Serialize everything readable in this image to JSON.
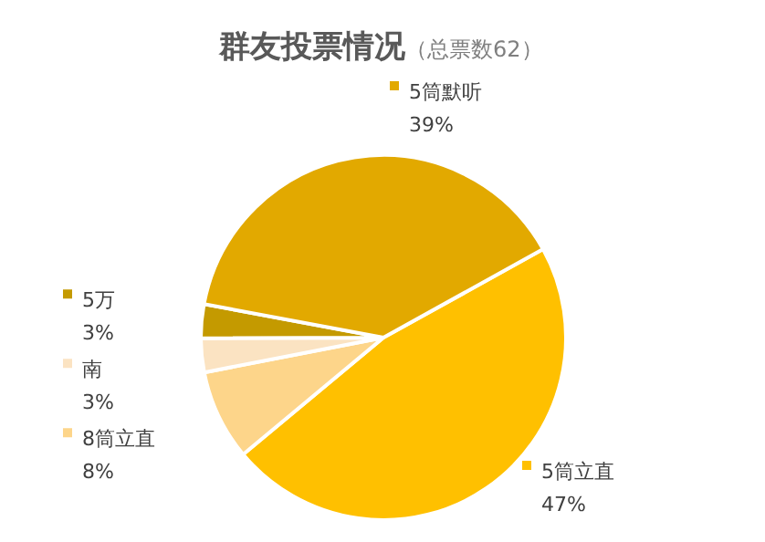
{
  "chart_data": {
    "type": "pie",
    "title": "群友投票情况",
    "subtitle": "（总票数62）",
    "categories": [
      "5筒立直",
      "8筒立直",
      "南",
      "5万",
      "5筒默听"
    ],
    "values": [
      47,
      8,
      3,
      3,
      39
    ],
    "value_labels": [
      "47%",
      "8%",
      "3%",
      "3%",
      "39%"
    ],
    "colors": [
      "#ffc000",
      "#fdd58a",
      "#fbe3c2",
      "#c49a00",
      "#e2a900"
    ],
    "legend": "left"
  }
}
